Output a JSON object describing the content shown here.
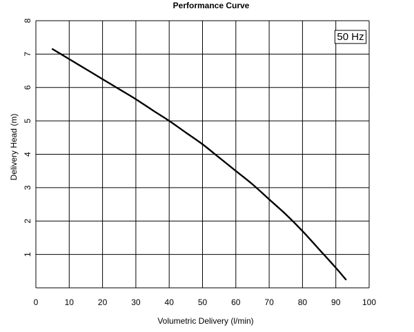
{
  "chart_data": {
    "type": "line",
    "title": "Performance Curve",
    "xlabel": "Volumetric Delivery (l/min)",
    "ylabel": "Delivery Head (m)",
    "annotation": "50 Hz",
    "xlim": [
      0,
      100
    ],
    "ylim": [
      0,
      8
    ],
    "x_ticks": [
      0,
      10,
      20,
      30,
      40,
      50,
      60,
      70,
      80,
      90,
      100
    ],
    "y_ticks": [
      1,
      2,
      3,
      4,
      5,
      6,
      7,
      8
    ],
    "grid": true,
    "line_color": "#000000",
    "series": [
      {
        "x": [
          5,
          10,
          15,
          20,
          25,
          30,
          35,
          40,
          45,
          50,
          55,
          60,
          65,
          70,
          75,
          80,
          85,
          90,
          93
        ],
        "y": [
          7.15,
          6.85,
          6.55,
          6.25,
          5.95,
          5.65,
          5.32,
          5.0,
          4.65,
          4.3,
          3.9,
          3.5,
          3.1,
          2.65,
          2.2,
          1.7,
          1.15,
          0.6,
          0.25
        ]
      }
    ]
  }
}
